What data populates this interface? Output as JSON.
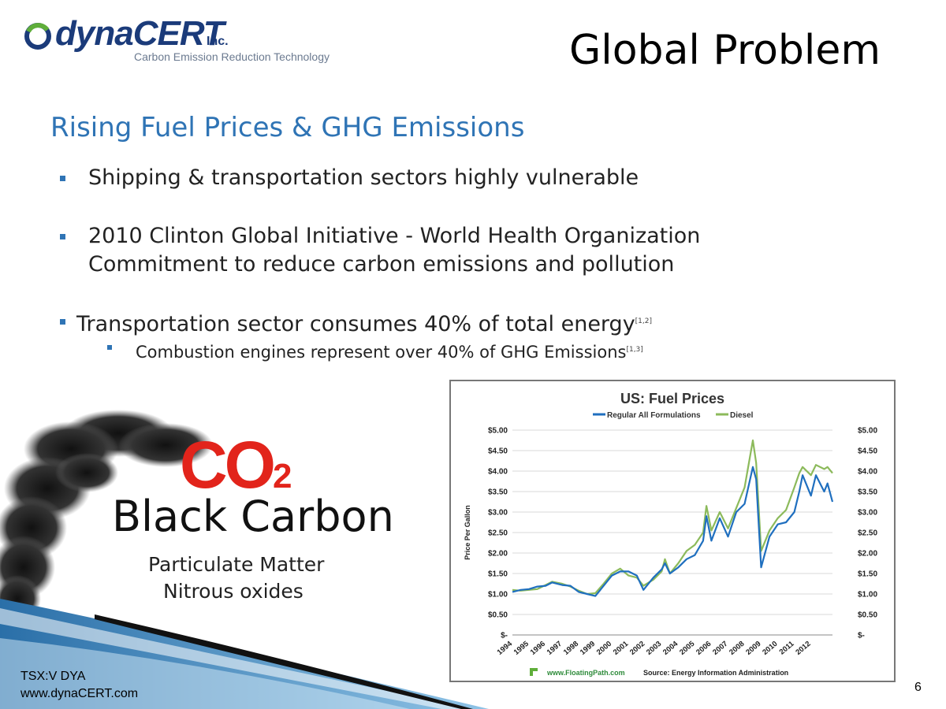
{
  "logo": {
    "brand_prefix": "dyna",
    "brand_suffix": "CERT",
    "suffix": "Inc.",
    "tagline": "Carbon Emission Reduction Technology"
  },
  "title": "Global Problem",
  "subtitle": "Rising Fuel Prices & GHG Emissions",
  "bullets": {
    "b1": "Shipping & transportation sectors highly vulnerable",
    "b2_line1": "2010 Clinton Global Initiative - World Health Organization",
    "b2_line2": "Commitment to reduce carbon emissions and pollution",
    "b3": "Transportation sector consumes 40% of total energy",
    "b3_ref": "[1,2]",
    "b4": "Combustion engines represent over 40% of GHG Emissions",
    "b4_ref": "[1,3]"
  },
  "graphic": {
    "co2_main": "CO",
    "co2_sub": "2",
    "black_carbon": "Black Carbon",
    "particulate": "Particulate Matter",
    "nitrous": "Nitrous oxides"
  },
  "footer": {
    "ticker": "TSX:V DYA",
    "website": "www.dynaCERT.com",
    "page_number": "6"
  },
  "colors": {
    "accent_blue": "#2f74b5",
    "co2_red": "#e2241b",
    "logo_blue": "#1b3b7a",
    "regular_line": "#1f6fbf",
    "diesel_line": "#8cba5b"
  },
  "chart_data": {
    "type": "line",
    "title": "US: Fuel Prices",
    "ylabel": "Price Per Gallon",
    "xlabel": "",
    "ylim": [
      0,
      5
    ],
    "y_ticks": [
      "$-",
      "$0.50",
      "$1.00",
      "$1.50",
      "$2.00",
      "$2.50",
      "$3.00",
      "$3.50",
      "$4.00",
      "$4.50",
      "$5.00"
    ],
    "x_ticks": [
      "1994",
      "1995",
      "1996",
      "1997",
      "1998",
      "1999",
      "2000",
      "2001",
      "2002",
      "2003",
      "2004",
      "2005",
      "2006",
      "2007",
      "2008",
      "2009",
      "2010",
      "2011",
      "2012"
    ],
    "x_range": [
      1994,
      2013.3
    ],
    "legend_position": "top",
    "grid": true,
    "source_site": "www.FloatingPath.com",
    "source_text": "Source: Energy Information Administration",
    "series": [
      {
        "name": "Regular All Formulations",
        "x": [
          1994,
          1994.5,
          1995,
          1995.5,
          1996,
          1996.4,
          1997,
          1997.5,
          1998,
          1998.5,
          1999,
          1999.5,
          2000,
          2000.5,
          2001,
          2001.5,
          2001.9,
          2002.5,
          2003,
          2003.2,
          2003.5,
          2004,
          2004.5,
          2005,
          2005.5,
          2005.7,
          2006,
          2006.5,
          2007,
          2007.5,
          2008,
          2008.5,
          2008.7,
          2009,
          2009.5,
          2010,
          2010.5,
          2011,
          2011.3,
          2011.5,
          2012,
          2012.3,
          2012.8,
          2013,
          2013.3
        ],
        "values": [
          1.05,
          1.1,
          1.12,
          1.18,
          1.2,
          1.28,
          1.22,
          1.2,
          1.05,
          1.0,
          0.95,
          1.2,
          1.45,
          1.55,
          1.55,
          1.45,
          1.1,
          1.4,
          1.6,
          1.75,
          1.5,
          1.65,
          1.85,
          1.95,
          2.3,
          2.9,
          2.3,
          2.85,
          2.4,
          3.0,
          3.2,
          4.1,
          3.8,
          1.65,
          2.4,
          2.7,
          2.75,
          3.0,
          3.5,
          3.9,
          3.4,
          3.9,
          3.5,
          3.7,
          3.25
        ]
      },
      {
        "name": "Diesel",
        "x": [
          1994,
          1994.5,
          1995,
          1995.5,
          1996,
          1996.4,
          1997,
          1997.5,
          1998,
          1998.5,
          1999,
          1999.5,
          2000,
          2000.5,
          2001,
          2001.5,
          2001.9,
          2002.5,
          2003,
          2003.2,
          2003.5,
          2004,
          2004.5,
          2005,
          2005.5,
          2005.7,
          2006,
          2006.5,
          2007,
          2007.5,
          2008,
          2008.5,
          2008.7,
          2009,
          2009.5,
          2010,
          2010.5,
          2011,
          2011.3,
          2011.5,
          2012,
          2012.3,
          2012.8,
          2013,
          2013.3
        ],
        "values": [
          1.1,
          1.08,
          1.1,
          1.12,
          1.22,
          1.3,
          1.25,
          1.18,
          1.08,
          1.0,
          1.02,
          1.25,
          1.5,
          1.62,
          1.45,
          1.4,
          1.2,
          1.35,
          1.55,
          1.85,
          1.5,
          1.75,
          2.05,
          2.2,
          2.5,
          3.15,
          2.55,
          3.0,
          2.6,
          3.1,
          3.6,
          4.75,
          4.2,
          2.05,
          2.55,
          2.85,
          3.05,
          3.6,
          3.95,
          4.1,
          3.9,
          4.15,
          4.05,
          4.1,
          3.95
        ]
      }
    ]
  }
}
